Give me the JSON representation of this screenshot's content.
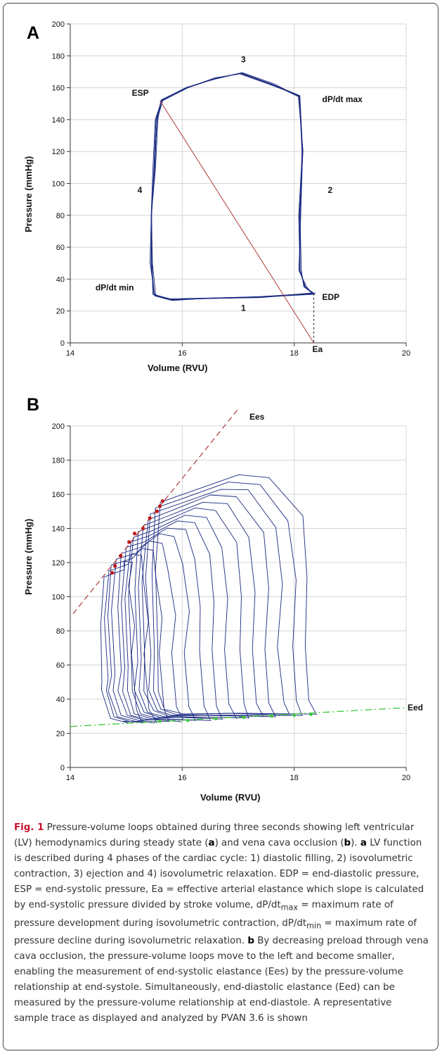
{
  "colors": {
    "loop": "#1b2a80",
    "ea_line": "#b03a3a",
    "ees_line": "#b03a3a",
    "eed_line": "#3cc83c",
    "markers": "#c01818",
    "grid": "#d4d4d4"
  },
  "chart_data": [
    {
      "type": "line",
      "panel_label": "A",
      "xlabel": "Volume (RVU)",
      "ylabel": "Pressure (mmHg)",
      "xlim": [
        14,
        20
      ],
      "ylim": [
        0,
        200
      ],
      "xticks": [
        14,
        16,
        18,
        20
      ],
      "yticks": [
        0,
        20,
        40,
        60,
        80,
        100,
        120,
        140,
        160,
        180,
        200
      ],
      "grid": true,
      "series": [
        {
          "role": "steady-state loop",
          "x": [
            18.35,
            18.2,
            18.1,
            18.1,
            18.15,
            18.1,
            17.6,
            17.05,
            16.6,
            16.1,
            15.65,
            15.55,
            15.5,
            15.45,
            15.45,
            15.5,
            15.8,
            16.5,
            17.4,
            18.35
          ],
          "y": [
            31,
            35,
            45,
            80,
            120,
            155,
            162,
            169,
            166,
            160,
            152,
            140,
            110,
            80,
            50,
            30,
            27,
            28,
            29,
            31
          ]
        }
      ],
      "ea_line": {
        "label": "Ea",
        "from": [
          15.6,
          152
        ],
        "to": [
          18.35,
          0
        ]
      },
      "edp_dropline": {
        "x": 18.35,
        "from_y": 31,
        "to_y": 0
      },
      "annotations": [
        {
          "text": "3",
          "x": 17.05,
          "y": 176
        },
        {
          "text": "ESP",
          "x": 15.1,
          "y": 155
        },
        {
          "text": "dP/dt max",
          "x": 18.5,
          "y": 151
        },
        {
          "text": "4",
          "x": 15.2,
          "y": 94
        },
        {
          "text": "2",
          "x": 18.6,
          "y": 94
        },
        {
          "text": "dP/dt min",
          "x": 14.45,
          "y": 33
        },
        {
          "text": "EDP",
          "x": 18.5,
          "y": 27
        },
        {
          "text": "1",
          "x": 17.05,
          "y": 20
        }
      ]
    },
    {
      "type": "line",
      "panel_label": "B",
      "xlabel": "Volume (RVU)",
      "ylabel": "Pressure (mmHg)",
      "xlim": [
        14,
        20
      ],
      "ylim": [
        0,
        200
      ],
      "xticks": [
        14,
        16,
        18,
        20
      ],
      "yticks": [
        0,
        20,
        40,
        60,
        80,
        100,
        120,
        140,
        160,
        180,
        200
      ],
      "grid": true,
      "ees_line": {
        "label": "Ees",
        "from": [
          14.05,
          90
        ],
        "to": [
          17.0,
          210
        ]
      },
      "eed_line": {
        "label": "Eed",
        "from": [
          14.0,
          24
        ],
        "to": [
          20.0,
          35
        ]
      },
      "ees_points": {
        "x": [
          14.75,
          14.8,
          14.9,
          15.05,
          15.15,
          15.3,
          15.42,
          15.55,
          15.6,
          15.65
        ],
        "y": [
          114,
          118,
          124,
          132,
          137,
          140,
          146,
          150,
          153,
          156
        ]
      },
      "eed_points": {
        "x": [
          15.6,
          16.1,
          16.6,
          17.1,
          17.6,
          18.0,
          18.3
        ],
        "y": [
          27,
          27.5,
          28.5,
          29.3,
          30,
          30.5,
          31
        ]
      },
      "loops": {
        "count": 14,
        "first": {
          "esv": 15.6,
          "edv": 18.4,
          "esp": 155,
          "peak": 170,
          "edp": 31
        },
        "last": {
          "esv": 14.6,
          "edv": 15.3,
          "esp": 112,
          "peak": 120,
          "edp": 26
        }
      }
    }
  ],
  "caption": {
    "fig_label": "Fig. 1",
    "intro": " Pressure-volume loops obtained during three seconds showing left ventricular (LV) hemodynamics during steady state (",
    "ref_a": "a",
    "mid1": ") and vena cava occlusion (",
    "ref_b": "b",
    "mid2": "). ",
    "a_label": "a",
    "a_text": " LV function is described during 4 phases of the cardiac cycle: 1) diastolic filling, 2) isovolumetric contraction, 3) ejection and 4) isovolumetric relaxation. EDP = end-diastolic pressure, ESP = end-systolic pressure, Ea = effective arterial elastance which slope is calculated by end-systolic pressure divided by stroke volume, dP/dt",
    "sub_max": "max",
    "max_text": " = maximum rate of pressure development during isovolumetric contraction, dP/dt",
    "sub_min": "min",
    "min_text": " = maximum rate of pressure decline during isovolumetric relaxation. ",
    "b_label": "b",
    "b_text": " By decreasing preload through vena cava occlusion, the pressure-volume loops move to the left and become smaller, enabling the measurement of end-systolic elastance (Ees) by the pressure-volume relationship at end-systole. Simultaneously, end-diastolic elastance (Eed) can be measured by the pressure-volume relationship at end-diastole. A representative sample trace as displayed and analyzed by PVAN 3.6 is shown"
  }
}
